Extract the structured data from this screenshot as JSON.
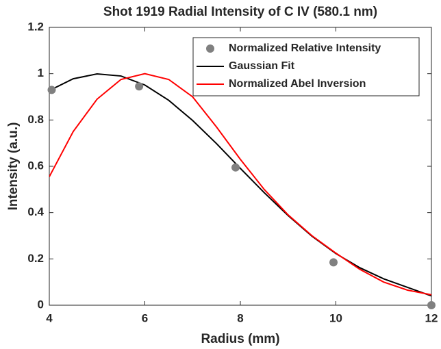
{
  "chart_data": {
    "type": "scatter+line",
    "title": "Shot 1919 Radial Intensity of C IV (580.1 nm)",
    "x_label": "Radius (mm)",
    "y_label": "Intensity (a.u.)",
    "xlim": [
      4,
      12
    ],
    "xticks": [
      4,
      6,
      8,
      10,
      12
    ],
    "ylim": [
      0,
      1.2
    ],
    "yticks": [
      0,
      0.2,
      0.4,
      0.6,
      0.8,
      1,
      1.2
    ],
    "legend": "upper right",
    "series": [
      {
        "name": "Normalized Relative Intensity",
        "kind": "scatter",
        "color": "#808080",
        "x": [
          4.05,
          5.88,
          7.9,
          9.95,
          12
        ],
        "values": [
          0.93,
          0.945,
          0.595,
          0.185,
          0.0
        ]
      },
      {
        "name": "Gaussian Fit",
        "kind": "line",
        "color": "#000000",
        "x": [
          4,
          4.5,
          5,
          5.5,
          6,
          6.5,
          7,
          7.5,
          8,
          8.5,
          9,
          9.5,
          10,
          10.5,
          11,
          11.5,
          12
        ],
        "values": [
          0.927,
          0.978,
          0.999,
          0.99,
          0.951,
          0.885,
          0.798,
          0.698,
          0.591,
          0.486,
          0.387,
          0.298,
          0.223,
          0.162,
          0.114,
          0.077,
          0.04
        ]
      },
      {
        "name": "Normalized Abel Inversion",
        "kind": "line",
        "color": "#ff0000",
        "x": [
          4,
          4.5,
          5,
          5.5,
          6,
          6.5,
          7,
          7.5,
          8,
          8.5,
          9,
          9.5,
          10,
          10.5,
          11,
          11.5,
          12
        ],
        "values": [
          0.555,
          0.75,
          0.89,
          0.975,
          1.0,
          0.975,
          0.9,
          0.77,
          0.63,
          0.5,
          0.39,
          0.3,
          0.225,
          0.155,
          0.1,
          0.065,
          0.045
        ]
      }
    ]
  }
}
